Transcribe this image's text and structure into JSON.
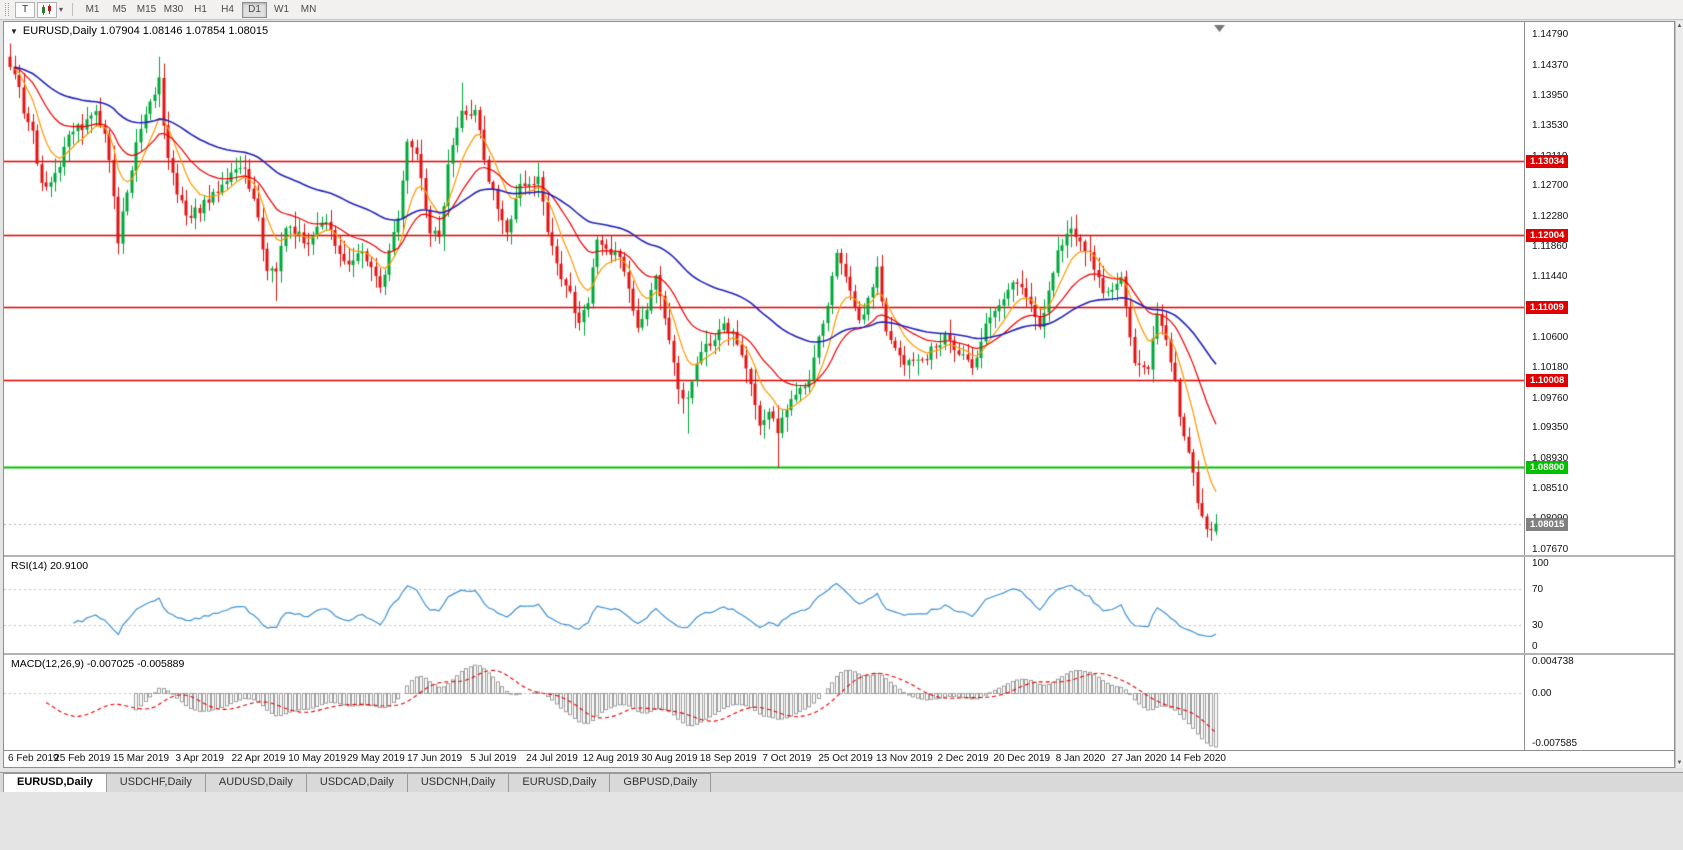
{
  "toolbar": {
    "text_tool_label": "T",
    "periods": [
      "M1",
      "M5",
      "M15",
      "M30",
      "H1",
      "H4",
      "D1",
      "W1",
      "MN"
    ],
    "active_period": "D1"
  },
  "icons": {
    "collapse": "▼",
    "dropdown_caret": "▾",
    "scroll_up": "▲",
    "scroll_down": "▼"
  },
  "chart": {
    "title": "EURUSD,Daily  1.07904 1.08146 1.07854 1.08015"
  },
  "chart_data": {
    "type": "candlestick",
    "symbol": "EURUSD",
    "timeframe": "Daily",
    "open": "1.07904",
    "high": "1.08146",
    "low": "1.07854",
    "close": "1.08015",
    "current_price": "1.08015",
    "price_view": {
      "max": 1.1496,
      "min": 1.0758
    },
    "y_axis_ticks": [
      "1.14790",
      "1.14370",
      "1.13950",
      "1.13530",
      "1.13110",
      "1.12700",
      "1.12280",
      "1.11860",
      "1.11440",
      "1.10600",
      "1.10180",
      "1.09760",
      "1.09350",
      "1.08930",
      "1.08510",
      "1.08090",
      "1.07670"
    ],
    "price_levels": [
      {
        "price": "1.13034",
        "color": "#e00000",
        "type": "resistance"
      },
      {
        "price": "1.12004",
        "color": "#e00000",
        "type": "resistance"
      },
      {
        "price": "1.11009",
        "color": "#e00000",
        "type": "resistance"
      },
      {
        "price": "1.10008",
        "color": "#e00000",
        "type": "resistance"
      },
      {
        "price": "1.08800",
        "color": "#00c000",
        "type": "support"
      }
    ],
    "x_labels": [
      "6 Feb 2019",
      "25 Feb 2019",
      "15 Mar 2019",
      "3 Apr 2019",
      "22 Apr 2019",
      "10 May 2019",
      "29 May 2019",
      "17 Jun 2019",
      "5 Jul 2019",
      "24 Jul 2019",
      "12 Aug 2019",
      "30 Aug 2019",
      "18 Sep 2019",
      "7 Oct 2019",
      "25 Oct 2019",
      "13 Nov 2019",
      "2 Dec 2019",
      "20 Dec 2019",
      "8 Jan 2020",
      "27 Jan 2020",
      "14 Feb 2020"
    ],
    "bars_total": 268,
    "first_label_bar": 3,
    "bars_per_label": 13,
    "candle_up_color": "#00a83a",
    "candle_down_color": "#e21414",
    "close_anchors": [
      [
        0,
        1.1438
      ],
      [
        2,
        1.14
      ],
      [
        3,
        1.1368
      ],
      [
        5,
        1.134
      ],
      [
        7,
        1.1268
      ],
      [
        9,
        1.128
      ],
      [
        11,
        1.13
      ],
      [
        13,
        1.1338
      ],
      [
        16,
        1.1352
      ],
      [
        19,
        1.137
      ],
      [
        21,
        1.134
      ],
      [
        22,
        1.1308
      ],
      [
        24,
        1.1196
      ],
      [
        25,
        1.1238
      ],
      [
        28,
        1.1325
      ],
      [
        31,
        1.138
      ],
      [
        33,
        1.1415
      ],
      [
        35,
        1.1302
      ],
      [
        37,
        1.1262
      ],
      [
        39,
        1.1225
      ],
      [
        42,
        1.1238
      ],
      [
        45,
        1.1255
      ],
      [
        47,
        1.1272
      ],
      [
        50,
        1.129
      ],
      [
        52,
        1.1297
      ],
      [
        55,
        1.122
      ],
      [
        57,
        1.1155
      ],
      [
        59,
        1.115
      ],
      [
        61,
        1.1215
      ],
      [
        64,
        1.12
      ],
      [
        66,
        1.1185
      ],
      [
        68,
        1.1215
      ],
      [
        70,
        1.1225
      ],
      [
        72,
        1.119
      ],
      [
        74,
        1.1158
      ],
      [
        76,
        1.117
      ],
      [
        78,
        1.118
      ],
      [
        80,
        1.1155
      ],
      [
        82,
        1.113
      ],
      [
        84,
        1.1175
      ],
      [
        86,
        1.1222
      ],
      [
        88,
        1.1333
      ],
      [
        90,
        1.131
      ],
      [
        93,
        1.121
      ],
      [
        95,
        1.1195
      ],
      [
        97,
        1.1293
      ],
      [
        100,
        1.137
      ],
      [
        103,
        1.137
      ],
      [
        106,
        1.128
      ],
      [
        108,
        1.124
      ],
      [
        110,
        1.1208
      ],
      [
        113,
        1.127
      ],
      [
        117,
        1.1277
      ],
      [
        119,
        1.121
      ],
      [
        122,
        1.1145
      ],
      [
        124,
        1.112
      ],
      [
        126,
        1.1076
      ],
      [
        128,
        1.111
      ],
      [
        130,
        1.12
      ],
      [
        132,
        1.118
      ],
      [
        135,
        1.117
      ],
      [
        137,
        1.112
      ],
      [
        139,
        1.1078
      ],
      [
        141,
        1.11
      ],
      [
        143,
        1.1145
      ],
      [
        145,
        1.108
      ],
      [
        148,
        1.099
      ],
      [
        150,
        1.097
      ],
      [
        152,
        1.103
      ],
      [
        154,
        1.1048
      ],
      [
        156,
        1.106
      ],
      [
        158,
        1.1073
      ],
      [
        160,
        1.107
      ],
      [
        163,
        1.1017
      ],
      [
        166,
        1.094
      ],
      [
        168,
        1.096
      ],
      [
        170,
        1.0932
      ],
      [
        173,
        1.0979
      ],
      [
        175,
        1.099
      ],
      [
        177,
        1.1005
      ],
      [
        180,
        1.108
      ],
      [
        183,
        1.117
      ],
      [
        185,
        1.114
      ],
      [
        188,
        1.108
      ],
      [
        190,
        1.111
      ],
      [
        192,
        1.1152
      ],
      [
        194,
        1.107
      ],
      [
        198,
        1.1018
      ],
      [
        200,
        1.103
      ],
      [
        202,
        1.1022
      ],
      [
        205,
        1.105
      ],
      [
        207,
        1.1058
      ],
      [
        210,
        1.104
      ],
      [
        213,
        1.1018
      ],
      [
        216,
        1.1077
      ],
      [
        219,
        1.11
      ],
      [
        222,
        1.1131
      ],
      [
        225,
        1.112
      ],
      [
        228,
        1.1078
      ],
      [
        230,
        1.112
      ],
      [
        232,
        1.1175
      ],
      [
        235,
        1.1212
      ],
      [
        237,
        1.1196
      ],
      [
        240,
        1.116
      ],
      [
        242,
        1.1122
      ],
      [
        244,
        1.113
      ],
      [
        246,
        1.1136
      ],
      [
        248,
        1.106
      ],
      [
        249,
        1.1024
      ],
      [
        252,
        1.102
      ],
      [
        254,
        1.1093
      ],
      [
        256,
        1.106
      ],
      [
        258,
        1.1
      ],
      [
        259,
        1.0946
      ],
      [
        261,
        1.09
      ],
      [
        262,
        1.0872
      ],
      [
        263,
        1.0832
      ],
      [
        265,
        1.0793
      ],
      [
        266,
        1.0786
      ],
      [
        267,
        1.08015
      ]
    ],
    "spikes": [
      {
        "bar": 24,
        "low": 1.1176
      },
      {
        "bar": 33,
        "high": 1.1448
      },
      {
        "bar": 59,
        "low": 1.111
      },
      {
        "bar": 100,
        "high": 1.1412
      },
      {
        "bar": 150,
        "low": 1.0926
      },
      {
        "bar": 170,
        "low": 1.0879
      }
    ],
    "moving_averages": [
      {
        "type": "ema",
        "period": 8,
        "color": "#ff9800"
      },
      {
        "type": "ema",
        "period": 21,
        "color": "#ee0000"
      },
      {
        "type": "ema",
        "period": 55,
        "color": "#2323bb"
      }
    ],
    "rsi": {
      "label": "RSI(14)",
      "value": "20.9100",
      "display": "RSI(14) 20.9100",
      "axis_ticks": [
        "100",
        "70",
        "30",
        "0"
      ],
      "levels": [
        70,
        30
      ],
      "color": "#4193d6"
    },
    "macd": {
      "label": "MACD(12,26,9)",
      "values": "-0.007025 -0.005889",
      "display": "MACD(12,26,9) -0.007025 -0.005889",
      "axis_ticks": [
        "0.004738",
        "0.00",
        "-0.007585"
      ],
      "range_max": 0.004738,
      "range_min": -0.007585,
      "signal_color": "#ee0000",
      "hist_color": "#9e9e9e"
    }
  },
  "tabs": {
    "active_index": 0,
    "items": [
      "EURUSD,Daily",
      "USDCHF,Daily",
      "AUDUSD,Daily",
      "USDCAD,Daily",
      "USDCNH,Daily",
      "EURUSD,Daily",
      "GBPUSD,Daily"
    ]
  }
}
